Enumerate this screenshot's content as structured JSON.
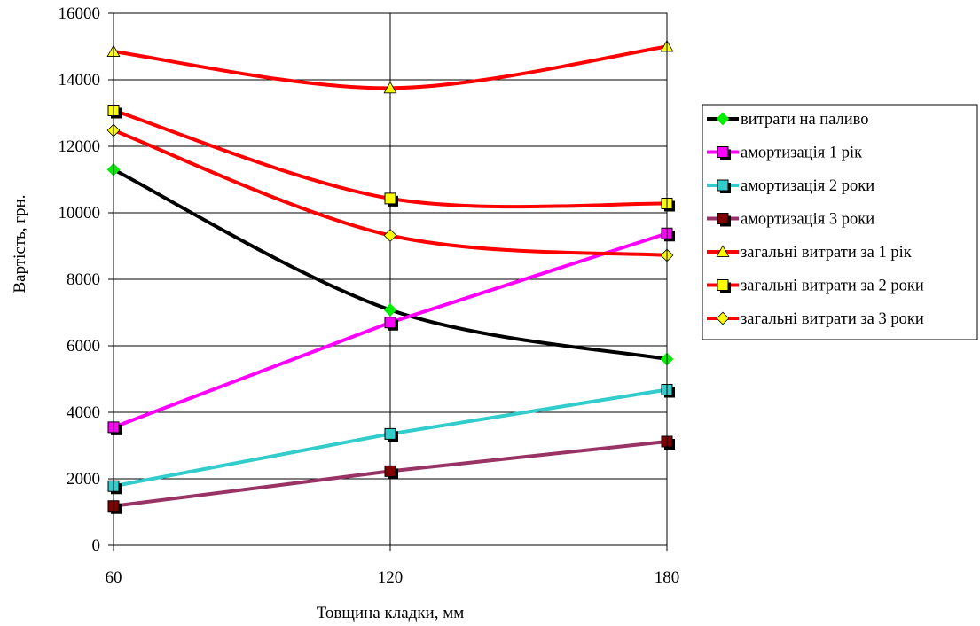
{
  "chart_data": {
    "type": "line",
    "xlabel": "Товщина кладки, мм",
    "ylabel": "Вартість, грн.",
    "x": [
      60,
      120,
      180
    ],
    "x_tick_labels": [
      "60",
      "120",
      "180"
    ],
    "ylim": [
      0,
      16000
    ],
    "y_ticks": [
      0,
      2000,
      4000,
      6000,
      8000,
      10000,
      12000,
      14000,
      16000
    ],
    "y_tick_labels": [
      "0",
      "2000",
      "4000",
      "6000",
      "8000",
      "10000",
      "12000",
      "14000",
      "16000"
    ],
    "grid": true,
    "legend_position": "right",
    "series": [
      {
        "name": "витрати на паливо",
        "values": [
          11300,
          7080,
          5600
        ],
        "line_color": "#000000",
        "marker": "diamond",
        "marker_color": "#00ee00",
        "smooth": true
      },
      {
        "name": "амортизація 1 рік",
        "values": [
          3550,
          6700,
          9380
        ],
        "line_color": "#ff00ff",
        "marker": "square",
        "marker_color": "#ff00ff",
        "smooth": false
      },
      {
        "name": "амортизація 2 роки",
        "values": [
          1780,
          3350,
          4680
        ],
        "line_color": "#33cccc",
        "marker": "square",
        "marker_color": "#33cccc",
        "smooth": false
      },
      {
        "name": "амортизація 3 роки",
        "values": [
          1180,
          2230,
          3120
        ],
        "line_color": "#993366",
        "marker": "square",
        "marker_color": "#800000",
        "smooth": false
      },
      {
        "name": "загальні витрати за 1 рік",
        "values": [
          14850,
          13750,
          15000
        ],
        "line_color": "#ff0000",
        "marker": "triangle",
        "marker_color": "#ffff00",
        "smooth": true
      },
      {
        "name": "загальні витрати за 2 роки",
        "values": [
          13080,
          10430,
          10280
        ],
        "line_color": "#ff0000",
        "marker": "square",
        "marker_color": "#ffff00",
        "smooth": true
      },
      {
        "name": "загальні витрати за 3 роки",
        "values": [
          12480,
          9320,
          8720
        ],
        "line_color": "#ff0000",
        "marker": "diamond",
        "marker_color": "#ffff00",
        "smooth": true
      }
    ]
  }
}
